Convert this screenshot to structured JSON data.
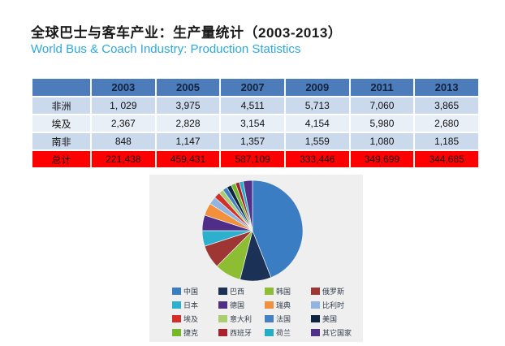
{
  "header": {
    "title_zh": "全球巴士与客车产业：生产量统计（2003-2013）",
    "title_en": "World Bus & Coach Industry: Production Statistics",
    "title_en_color": "#2BAAE1"
  },
  "table": {
    "columns": [
      "",
      "2003",
      "2005",
      "2007",
      "2009",
      "2011",
      "2013"
    ],
    "rows": [
      {
        "label": "非洲",
        "values": [
          "1, 029",
          "3,975",
          "4,511",
          "5,713",
          "7,060",
          "3,865"
        ]
      },
      {
        "label": "埃及",
        "values": [
          "2,367",
          "2,828",
          "3,154",
          "4,154",
          "5,980",
          "2,680"
        ]
      },
      {
        "label": "南非",
        "values": [
          "848",
          "1,147",
          "1,357",
          "1,559",
          "1,080",
          "1,185"
        ]
      }
    ],
    "total_row": {
      "label": "总计",
      "values": [
        "221,438",
        "459,431",
        "587,109",
        "333,446",
        "349,699",
        "344,685"
      ]
    },
    "colors": {
      "header_bg": "#4D7CBB",
      "band_a_bg": "#CBD9ED",
      "band_b_bg": "#E9EFF7",
      "total_bg": "#FF0000"
    }
  },
  "chart_data": {
    "type": "pie",
    "title": "",
    "legend_position": "bottom, 4-column grid",
    "panel_bg": "#EFEFEF",
    "categories": [
      "中国",
      "巴西",
      "韩国",
      "俄罗斯",
      "日本",
      "德国",
      "瑞典",
      "比利时",
      "埃及",
      "意大利",
      "法国",
      "美国",
      "捷克",
      "西班牙",
      "荷兰",
      "其它国家"
    ],
    "values": [
      44,
      10,
      8.5,
      7.5,
      5,
      5,
      4,
      2.5,
      2,
      1.5,
      1.5,
      1.5,
      1.5,
      1.25,
      1.25,
      3
    ],
    "unit": "percent (estimated from slice angles)",
    "colors": [
      "#3A7DC3",
      "#1B3156",
      "#8CBD32",
      "#9E3634",
      "#2CB0CD",
      "#4E2E87",
      "#F2903B",
      "#92B4E0",
      "#D42E29",
      "#AACE6F",
      "#4380C6",
      "#0F2441",
      "#76B82A",
      "#AD1F2A",
      "#22AEC6",
      "#503089"
    ]
  }
}
